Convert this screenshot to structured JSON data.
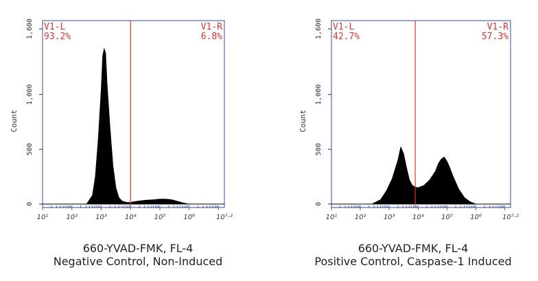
{
  "chart_data": [
    {
      "type": "histogram",
      "xscale": "log10",
      "xlim": [
        1,
        7.2
      ],
      "ylim": [
        0,
        1600
      ],
      "ylabel": "Count",
      "xlabel": "",
      "yticks": [
        "0",
        "500",
        "1,000",
        "1,600"
      ],
      "xticks": [
        "10¹",
        "10²",
        "10³",
        "10⁴",
        "10⁵",
        "10⁶",
        "10⁷·²"
      ],
      "gate_x": 4.0,
      "gates": [
        {
          "name": "V1-L",
          "value": "93.2%"
        },
        {
          "name": "V1-R",
          "value": "6.8%"
        }
      ],
      "x": [
        2.5,
        2.7,
        2.8,
        2.9,
        3.0,
        3.05,
        3.1,
        3.15,
        3.2,
        3.3,
        3.4,
        3.5,
        3.6,
        3.7,
        3.8,
        3.9,
        4.0,
        4.2,
        4.5,
        4.8,
        5.0,
        5.2,
        5.4,
        5.6,
        5.8,
        6.0
      ],
      "y": [
        0,
        80,
        250,
        600,
        1050,
        1350,
        1420,
        1380,
        1100,
        700,
        350,
        150,
        60,
        30,
        20,
        15,
        15,
        25,
        35,
        40,
        45,
        45,
        40,
        25,
        10,
        0
      ],
      "caption_line1": "660-YVAD-FMK, FL-4",
      "caption_line2": "Negative Control, Non-Induced"
    },
    {
      "type": "histogram",
      "xscale": "log10",
      "xlim": [
        1,
        7.2
      ],
      "ylim": [
        0,
        1600
      ],
      "ylabel": "Count",
      "xlabel": "",
      "yticks": [
        "0",
        "500",
        "1,000",
        "1,600"
      ],
      "xticks": [
        "10¹",
        "10²",
        "10³",
        "10⁴",
        "10⁵",
        "10⁶",
        "10⁷·²"
      ],
      "gate_x": 3.9,
      "gates": [
        {
          "name": "V1-L",
          "value": "42.7%"
        },
        {
          "name": "V1-R",
          "value": "57.3%"
        }
      ],
      "x": [
        2.4,
        2.7,
        2.9,
        3.1,
        3.3,
        3.4,
        3.5,
        3.6,
        3.7,
        3.8,
        3.9,
        4.0,
        4.2,
        4.4,
        4.6,
        4.7,
        4.8,
        4.9,
        5.0,
        5.1,
        5.2,
        5.4,
        5.6,
        5.8,
        6.0
      ],
      "y": [
        0,
        40,
        120,
        230,
        400,
        520,
        460,
        330,
        220,
        170,
        155,
        150,
        170,
        220,
        300,
        370,
        410,
        430,
        390,
        330,
        260,
        140,
        60,
        20,
        0
      ],
      "caption_line1": "660-YVAD-FMK, FL-4",
      "caption_line2": "Positive Control, Caspase-1 Induced"
    }
  ],
  "colors": {
    "frame": "#5566bb",
    "gate": "#dd3333",
    "fill": "#000000",
    "text": "#333333"
  }
}
